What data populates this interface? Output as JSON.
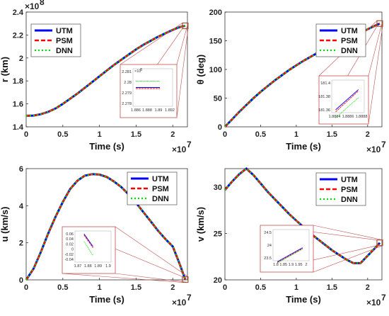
{
  "colors": {
    "UTM": "#0000ff",
    "PSM": "#ff0000",
    "DNN": "#00dd00",
    "zoom": "#c0504d",
    "marker": "#a0522d"
  },
  "chart_data": [
    {
      "type": "line",
      "id": "r",
      "ylabel": "r (km)",
      "xlabel": "Time (s)",
      "x_multiplier": "×10",
      "x_exponent": "7",
      "y_multiplier": "×10",
      "y_exponent": "8",
      "xlim": [
        0,
        2.2
      ],
      "ylim": [
        1.4,
        2.4
      ],
      "xticks": [
        "0",
        "0.5",
        "1",
        "1.5",
        "2"
      ],
      "xtick_values": [
        0,
        0.5,
        1,
        1.5,
        2
      ],
      "yticks": [
        "1.4",
        "1.6",
        "1.8",
        "2",
        "2.2",
        "2.4"
      ],
      "ytick_values": [
        1.4,
        1.6,
        1.8,
        2.0,
        2.2,
        2.4
      ],
      "legend": [
        "UTM",
        "PSM",
        "DNN"
      ],
      "legend_placement": "top-left",
      "x": [
        0,
        0.1,
        0.2,
        0.3,
        0.4,
        0.5,
        0.6,
        0.7,
        0.8,
        0.9,
        1.0,
        1.1,
        1.2,
        1.3,
        1.4,
        1.5,
        1.6,
        1.7,
        1.8,
        1.9,
        2.0,
        2.1,
        2.17
      ],
      "y": [
        1.496,
        1.498,
        1.51,
        1.53,
        1.56,
        1.6,
        1.645,
        1.69,
        1.74,
        1.79,
        1.84,
        1.89,
        1.94,
        1.985,
        2.03,
        2.075,
        2.115,
        2.15,
        2.185,
        2.215,
        2.245,
        2.27,
        2.28
      ],
      "inset": {
        "exponent_label": "×10",
        "exponent": "8",
        "xticks": [
          "1.886",
          "1.888",
          "1.89",
          "1.892"
        ],
        "yticks": [
          "2.281",
          "2.28",
          "2.279",
          "2.278"
        ],
        "lines": [
          {
            "name": "UTM",
            "y": 2.2795
          },
          {
            "name": "PSM",
            "y": 2.2794
          },
          {
            "name": "DNN",
            "y": 2.2801
          }
        ]
      }
    },
    {
      "type": "line",
      "id": "theta",
      "ylabel": "θ (deg)",
      "xlabel": "Time (s)",
      "x_multiplier": "×10",
      "x_exponent": "7",
      "xlim": [
        0,
        2.2
      ],
      "ylim": [
        0,
        200
      ],
      "xticks": [
        "0",
        "0.5",
        "1",
        "1.5",
        "2"
      ],
      "xtick_values": [
        0,
        0.5,
        1,
        1.5,
        2
      ],
      "yticks": [
        "0",
        "50",
        "100",
        "150",
        "200"
      ],
      "ytick_values": [
        0,
        50,
        100,
        150,
        200
      ],
      "legend": [
        "UTM",
        "PSM",
        "DNN"
      ],
      "legend_placement": "top-right",
      "x": [
        0,
        0.1,
        0.2,
        0.3,
        0.4,
        0.5,
        0.6,
        0.7,
        0.8,
        0.9,
        1.0,
        1.1,
        1.2,
        1.3,
        1.4,
        1.5,
        1.6,
        1.7,
        1.8,
        1.9,
        2.0,
        2.1,
        2.17
      ],
      "y": [
        0,
        13,
        26,
        38,
        50,
        61,
        71,
        81,
        90,
        99,
        107,
        115,
        122,
        129,
        135,
        141,
        147,
        153,
        159,
        164,
        170,
        176,
        180
      ],
      "inset": {
        "xticks": [
          "1.8884",
          "1.8886",
          "1.8888"
        ],
        "yticks": [
          "181.4",
          "181.38",
          "181.36"
        ],
        "lines": [
          {
            "name": "UTM",
            "from": 181.36,
            "to": 181.39
          },
          {
            "name": "PSM",
            "from": 181.357,
            "to": 181.388
          },
          {
            "name": "DNN",
            "from": 181.348,
            "to": 181.378
          }
        ]
      }
    },
    {
      "type": "line",
      "id": "u",
      "ylabel": "u (km/s)",
      "xlabel": "Time (s)",
      "x_multiplier": "×10",
      "x_exponent": "7",
      "xlim": [
        0,
        2.2
      ],
      "ylim": [
        0,
        6
      ],
      "xticks": [
        "0",
        "0.5",
        "1",
        "1.5",
        "2"
      ],
      "xtick_values": [
        0,
        0.5,
        1,
        1.5,
        2
      ],
      "yticks": [
        "0",
        "2",
        "4",
        "6"
      ],
      "ytick_values": [
        0,
        2,
        4,
        6
      ],
      "legend": [
        "UTM",
        "PSM",
        "DNN"
      ],
      "legend_placement": "top-right",
      "x": [
        0,
        0.1,
        0.2,
        0.3,
        0.4,
        0.5,
        0.6,
        0.7,
        0.8,
        0.9,
        1.0,
        1.1,
        1.2,
        1.3,
        1.4,
        1.5,
        1.6,
        1.7,
        1.8,
        1.9,
        2.0,
        2.1,
        2.17
      ],
      "y": [
        0,
        0.6,
        1.5,
        2.5,
        3.4,
        4.2,
        4.9,
        5.35,
        5.62,
        5.7,
        5.68,
        5.55,
        5.3,
        5.0,
        4.6,
        4.15,
        3.65,
        3.15,
        2.65,
        2.2,
        1.8,
        0.8,
        0.02
      ],
      "inset": {
        "xticks": [
          "1.87",
          "1.88",
          "1.89",
          "1.9"
        ],
        "yticks": [
          "0.06",
          "0.04",
          "0.02",
          "0",
          "-0.02",
          "-0.04"
        ],
        "lines": [
          {
            "name": "UTM",
            "from": 0.06,
            "to": 0.01
          },
          {
            "name": "PSM",
            "from": 0.055,
            "to": 0.005
          },
          {
            "name": "DNN",
            "from": 0.03,
            "to": -0.025
          }
        ]
      }
    },
    {
      "type": "line",
      "id": "v",
      "ylabel": "v (km/s)",
      "xlabel": "Time (s)",
      "x_multiplier": "×10",
      "x_exponent": "7",
      "xlim": [
        0,
        2.2
      ],
      "ylim": [
        20,
        32
      ],
      "xticks": [
        "0",
        "0.5",
        "1",
        "1.5",
        "2"
      ],
      "xtick_values": [
        0,
        0.5,
        1,
        1.5,
        2
      ],
      "yticks": [
        "20",
        "25",
        "30"
      ],
      "ytick_values": [
        20,
        25,
        30
      ],
      "legend": [
        "UTM",
        "PSM",
        "DNN"
      ],
      "legend_placement": "top-right",
      "x": [
        0,
        0.1,
        0.2,
        0.3,
        0.4,
        0.5,
        0.6,
        0.7,
        0.8,
        0.9,
        1.0,
        1.1,
        1.2,
        1.3,
        1.4,
        1.5,
        1.6,
        1.7,
        1.8,
        1.9,
        2.0,
        2.1,
        2.17
      ],
      "y": [
        29.7,
        30.6,
        31.4,
        32.0,
        31.3,
        30.4,
        29.5,
        28.7,
        27.9,
        27.1,
        26.4,
        25.7,
        25.0,
        24.4,
        23.8,
        23.2,
        22.7,
        22.2,
        21.8,
        21.8,
        22.6,
        23.4,
        24.0
      ],
      "inset": {
        "xticks": [
          "1.8",
          "1.85",
          "1.9",
          "1.95",
          "2"
        ],
        "yticks": [
          "24.5",
          "24",
          "23.5"
        ],
        "lines": [
          {
            "name": "UTM",
            "from": 23.35,
            "to": 23.9
          },
          {
            "name": "PSM",
            "from": 23.32,
            "to": 23.87
          },
          {
            "name": "DNN",
            "from": 23.3,
            "to": 23.84
          }
        ]
      }
    }
  ]
}
